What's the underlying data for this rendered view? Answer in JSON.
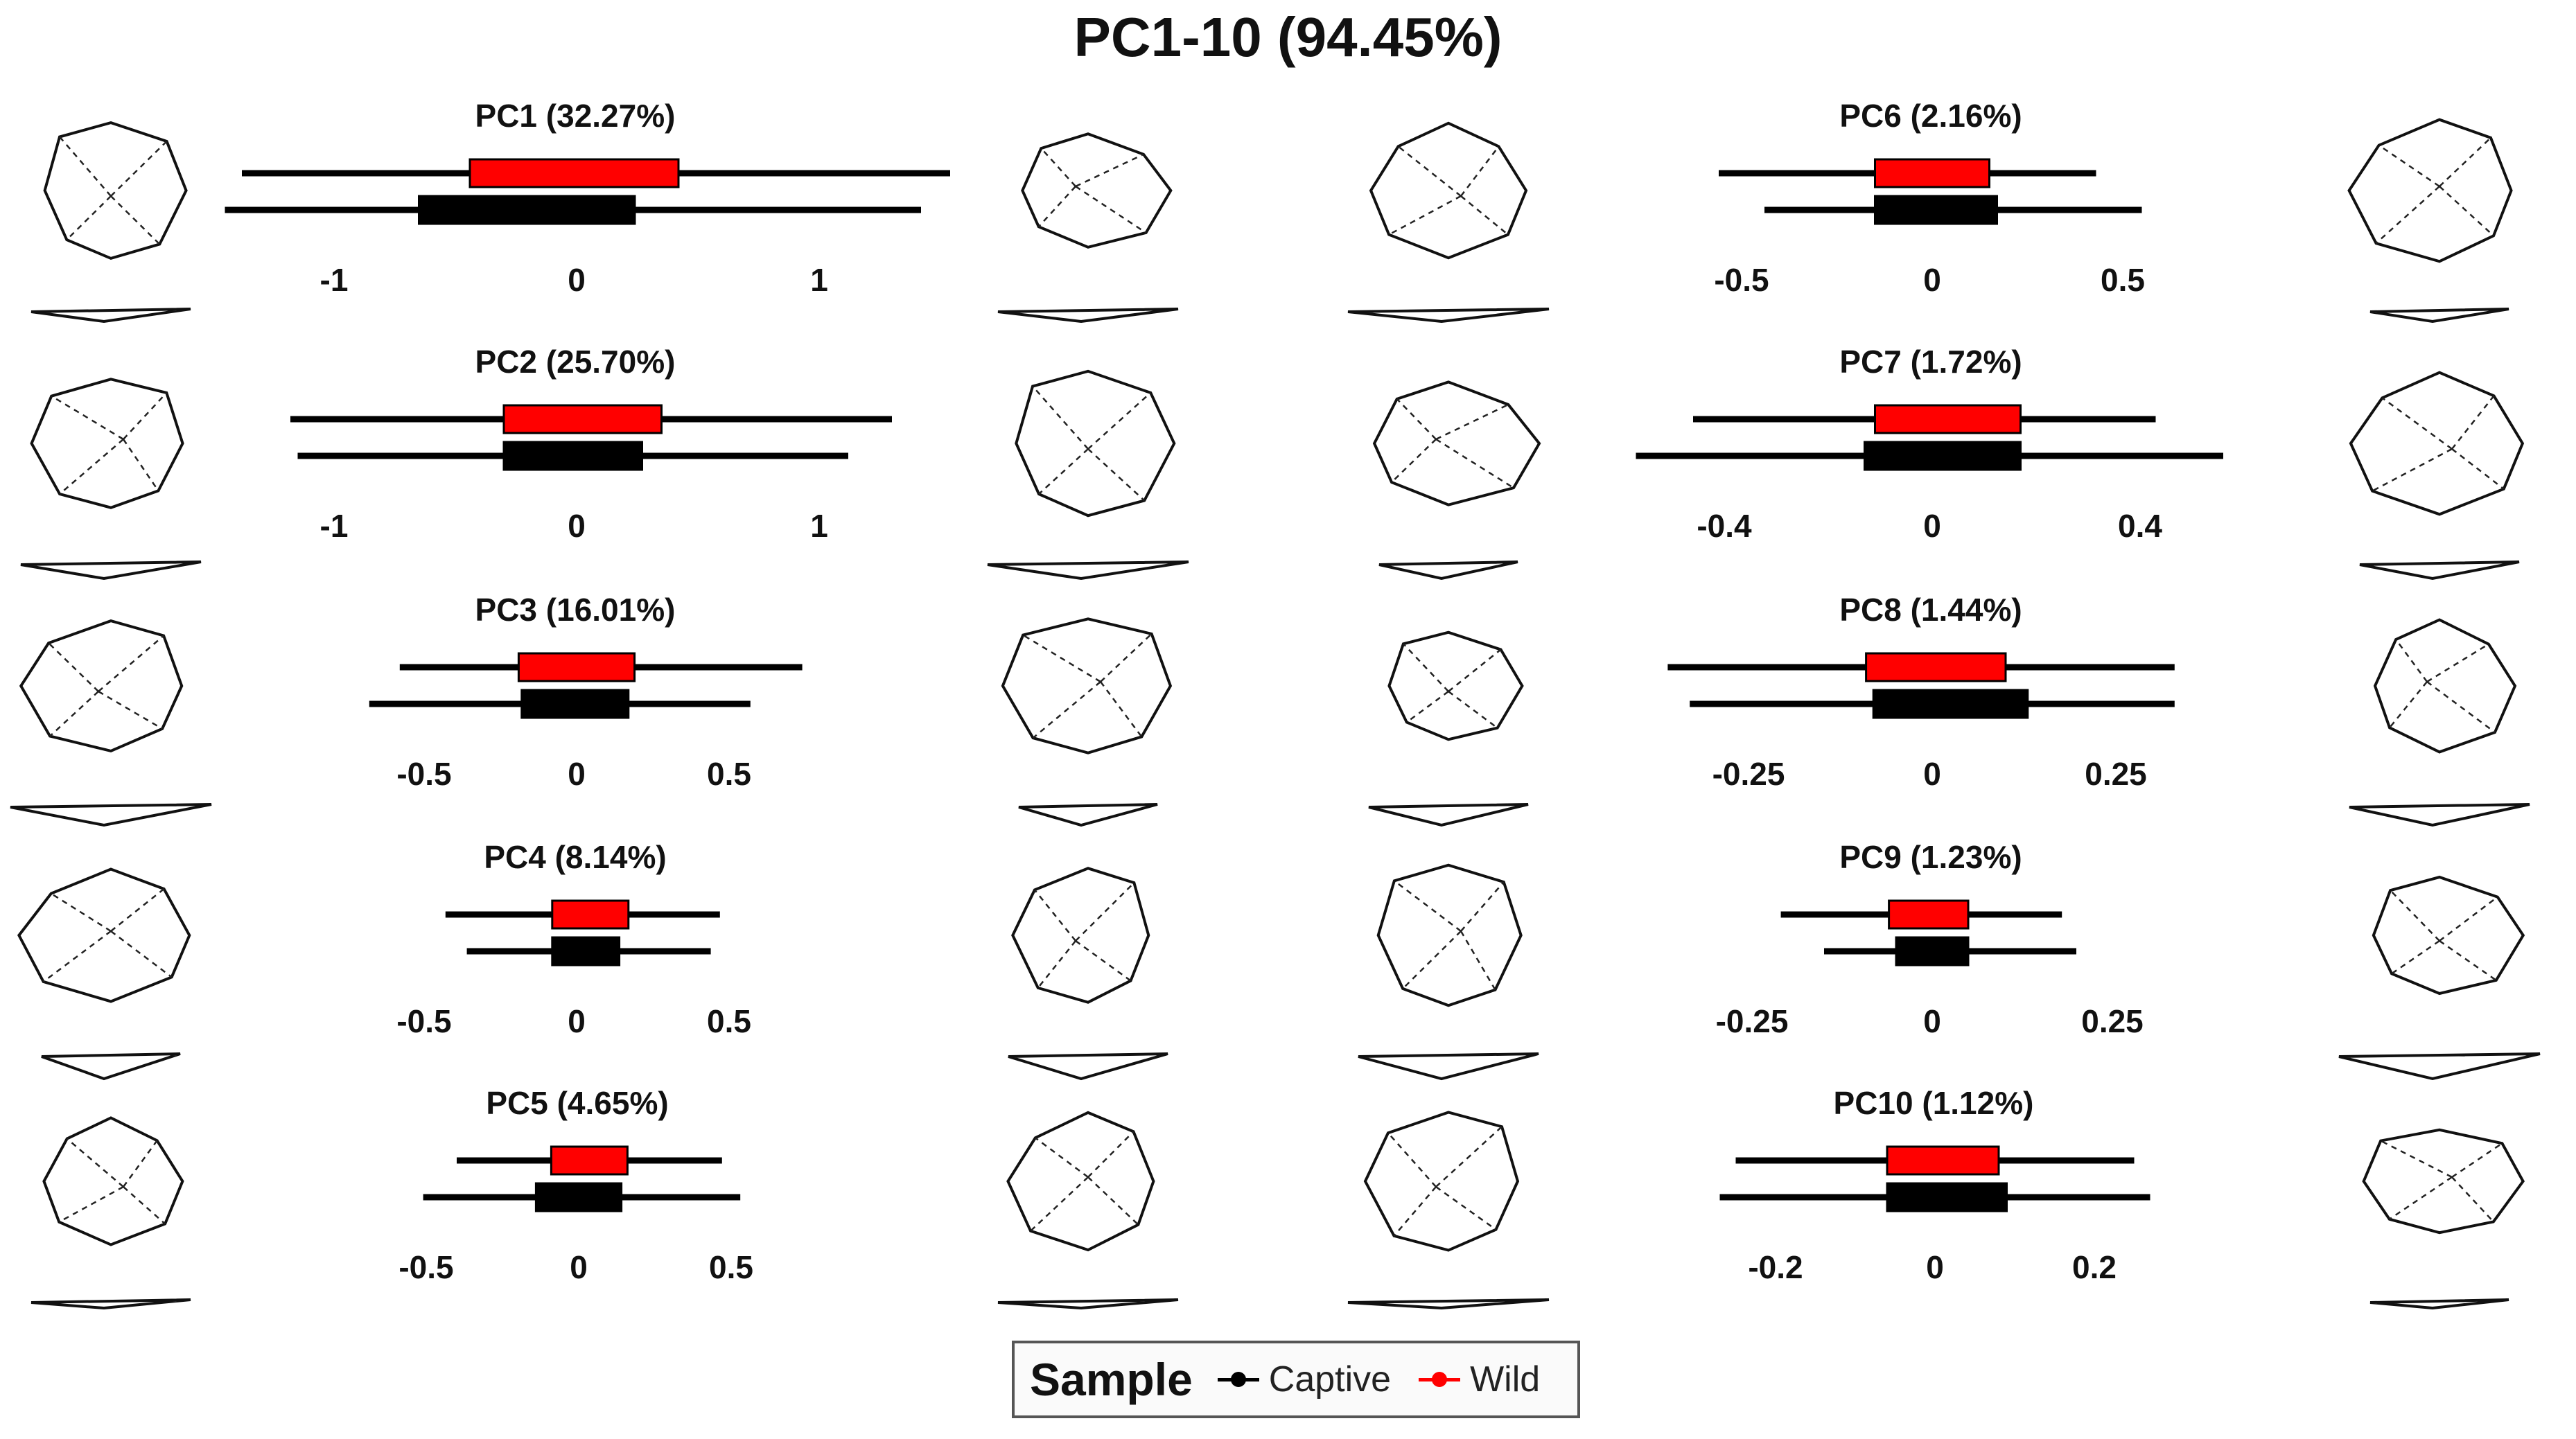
{
  "title": "PC1-10 (94.45%)",
  "colors": {
    "wild": "#ff0000",
    "captive": "#000000",
    "outline": "#111111"
  },
  "legend": {
    "title": "Sample",
    "items": [
      {
        "label": "Captive",
        "color": "#000000"
      },
      {
        "label": "Wild",
        "color": "#ff0000"
      }
    ]
  },
  "chart_data": {
    "type": "boxplot",
    "title": "PC1-10 (94.45%)",
    "series_names": [
      "Wild",
      "Captive"
    ],
    "panels": [
      {
        "name": "PC1 (32.27%)",
        "ticks": [
          -1,
          0,
          1
        ],
        "tick_labels": [
          "-1",
          "0",
          "1"
        ],
        "wild": {
          "whisker_low": -1.38,
          "q1": -0.44,
          "q3": 0.42,
          "whisker_high": 1.54
        },
        "captive": {
          "whisker_low": -1.45,
          "q1": -0.65,
          "q3": 0.24,
          "whisker_high": 1.42
        }
      },
      {
        "name": "PC2 (25.70%)",
        "ticks": [
          -1,
          0,
          1
        ],
        "tick_labels": [
          "-1",
          "0",
          "1"
        ],
        "wild": {
          "whisker_low": -1.18,
          "q1": -0.3,
          "q3": 0.35,
          "whisker_high": 1.3
        },
        "captive": {
          "whisker_low": -1.15,
          "q1": -0.3,
          "q3": 0.27,
          "whisker_high": 1.12
        }
      },
      {
        "name": "PC3 (16.01%)",
        "ticks": [
          -0.5,
          0,
          0.5
        ],
        "tick_labels": [
          "-0.5",
          "0",
          "0.5"
        ],
        "wild": {
          "whisker_low": -0.58,
          "q1": -0.19,
          "q3": 0.19,
          "whisker_high": 0.74
        },
        "captive": {
          "whisker_low": -0.68,
          "q1": -0.18,
          "q3": 0.17,
          "whisker_high": 0.57
        }
      },
      {
        "name": "PC4 (8.14%)",
        "ticks": [
          -0.5,
          0,
          0.5
        ],
        "tick_labels": [
          "-0.5",
          "0",
          "0.5"
        ],
        "wild": {
          "whisker_low": -0.43,
          "q1": -0.08,
          "q3": 0.17,
          "whisker_high": 0.47
        },
        "captive": {
          "whisker_low": -0.36,
          "q1": -0.08,
          "q3": 0.14,
          "whisker_high": 0.44
        }
      },
      {
        "name": "PC5 (4.65%)",
        "ticks": [
          -0.5,
          0,
          0.5
        ],
        "tick_labels": [
          "-0.5",
          "0",
          "0.5"
        ],
        "wild": {
          "whisker_low": -0.4,
          "q1": -0.09,
          "q3": 0.16,
          "whisker_high": 0.47
        },
        "captive": {
          "whisker_low": -0.51,
          "q1": -0.14,
          "q3": 0.14,
          "whisker_high": 0.53
        }
      },
      {
        "name": "PC6 (2.16%)",
        "ticks": [
          -0.5,
          0,
          0.5
        ],
        "tick_labels": [
          "-0.5",
          "0",
          "0.5"
        ],
        "wild": {
          "whisker_low": -0.56,
          "q1": -0.15,
          "q3": 0.15,
          "whisker_high": 0.43
        },
        "captive": {
          "whisker_low": -0.44,
          "q1": -0.15,
          "q3": 0.17,
          "whisker_high": 0.55
        }
      },
      {
        "name": "PC7 (1.72%)",
        "ticks": [
          -0.4,
          0,
          0.4
        ],
        "tick_labels": [
          "-0.4",
          "0",
          "0.4"
        ],
        "wild": {
          "whisker_low": -0.46,
          "q1": -0.11,
          "q3": 0.17,
          "whisker_high": 0.43
        },
        "captive": {
          "whisker_low": -0.57,
          "q1": -0.13,
          "q3": 0.17,
          "whisker_high": 0.56
        }
      },
      {
        "name": "PC8 (1.44%)",
        "ticks": [
          -0.25,
          0,
          0.25
        ],
        "tick_labels": [
          "-0.25",
          "0",
          "0.25"
        ],
        "wild": {
          "whisker_low": -0.36,
          "q1": -0.09,
          "q3": 0.1,
          "whisker_high": 0.33
        },
        "captive": {
          "whisker_low": -0.33,
          "q1": -0.08,
          "q3": 0.13,
          "whisker_high": 0.33
        }
      },
      {
        "name": "PC9 (1.23%)",
        "ticks": [
          -0.25,
          0,
          0.25
        ],
        "tick_labels": [
          "-0.25",
          "0",
          "0.25"
        ],
        "wild": {
          "whisker_low": -0.21,
          "q1": -0.06,
          "q3": 0.05,
          "whisker_high": 0.18
        },
        "captive": {
          "whisker_low": -0.15,
          "q1": -0.05,
          "q3": 0.05,
          "whisker_high": 0.2
        }
      },
      {
        "name": "PC10 (1.12%)",
        "ticks": [
          -0.2,
          0,
          0.2
        ],
        "tick_labels": [
          "-0.2",
          "0",
          "0.2"
        ],
        "wild": {
          "whisker_low": -0.25,
          "q1": -0.06,
          "q3": 0.08,
          "whisker_high": 0.25
        },
        "captive": {
          "whisker_low": -0.27,
          "q1": -0.06,
          "q3": 0.09,
          "whisker_high": 0.27
        }
      }
    ]
  }
}
